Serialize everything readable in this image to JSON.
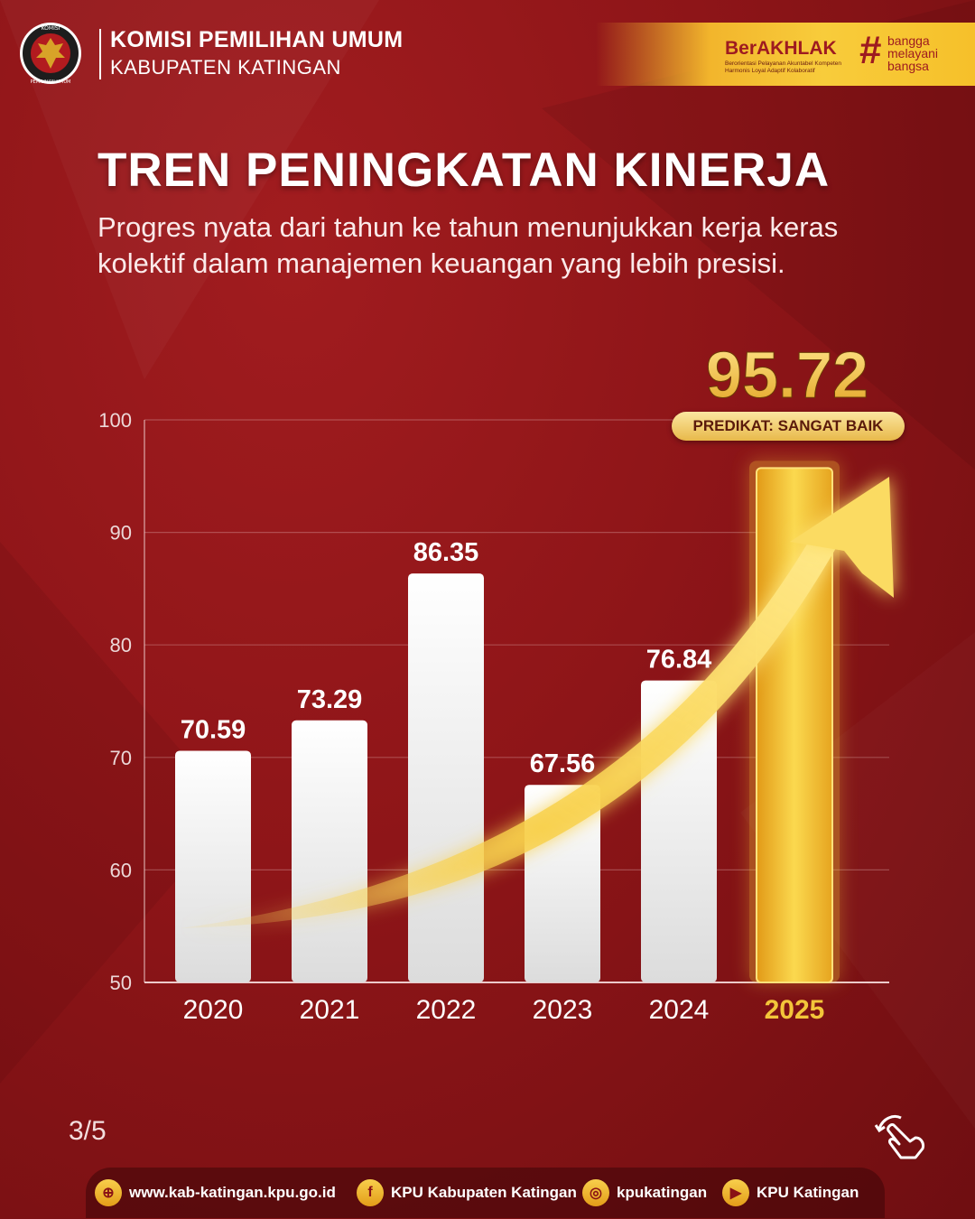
{
  "header": {
    "org_name": "KOMISI PEMILIHAN UMUM",
    "org_sub": "KABUPATEN KATINGAN",
    "logo_text_top": "KOMISI",
    "logo_text_bottom": "PEMILIHAN UMUM",
    "berakhlak": "BerAKHLAK",
    "berakhlak_desc": "Berorientasi Pelayanan Akuntabel Kompeten Harmonis Loyal Adaptif Kolaboratif",
    "hash": "#",
    "slogan": [
      "bangga",
      "melayani",
      "bangsa"
    ]
  },
  "title": "TREN PENINGKATAN KINERJA",
  "subtitle": "Progres nyata dari tahun ke tahun menunjukkan kerja keras kolektif dalam manajemen keuangan yang lebih presisi.",
  "chart_data": {
    "type": "bar",
    "categories": [
      "2020",
      "2021",
      "2022",
      "2023",
      "2024",
      "2025"
    ],
    "values": [
      70.59,
      73.29,
      86.35,
      67.56,
      76.84,
      95.72
    ],
    "data_labels": [
      "70.59",
      "73.29",
      "86.35",
      "67.56",
      "76.84",
      "95.72"
    ],
    "highlight": {
      "category": "2025",
      "badge": "PREDIKAT: SANGAT BAIK"
    },
    "ylim": [
      50,
      100
    ],
    "yticks": [
      "50",
      "60",
      "70",
      "80",
      "90",
      "100"
    ],
    "grid": true,
    "trend_arrow": true
  },
  "colors": {
    "background": "#8e1518",
    "bar": "#f4f4f4",
    "highlight_bar": "#f2b92a",
    "gold_text": "#f3c53a",
    "axis": "#e8d6d6"
  },
  "page_indicator": "3/5",
  "footer": {
    "website": "www.kab-katingan.kpu.go.id",
    "facebook": "KPU Kabupaten Katingan",
    "instagram": "kpukatingan",
    "youtube": "KPU Katingan"
  }
}
